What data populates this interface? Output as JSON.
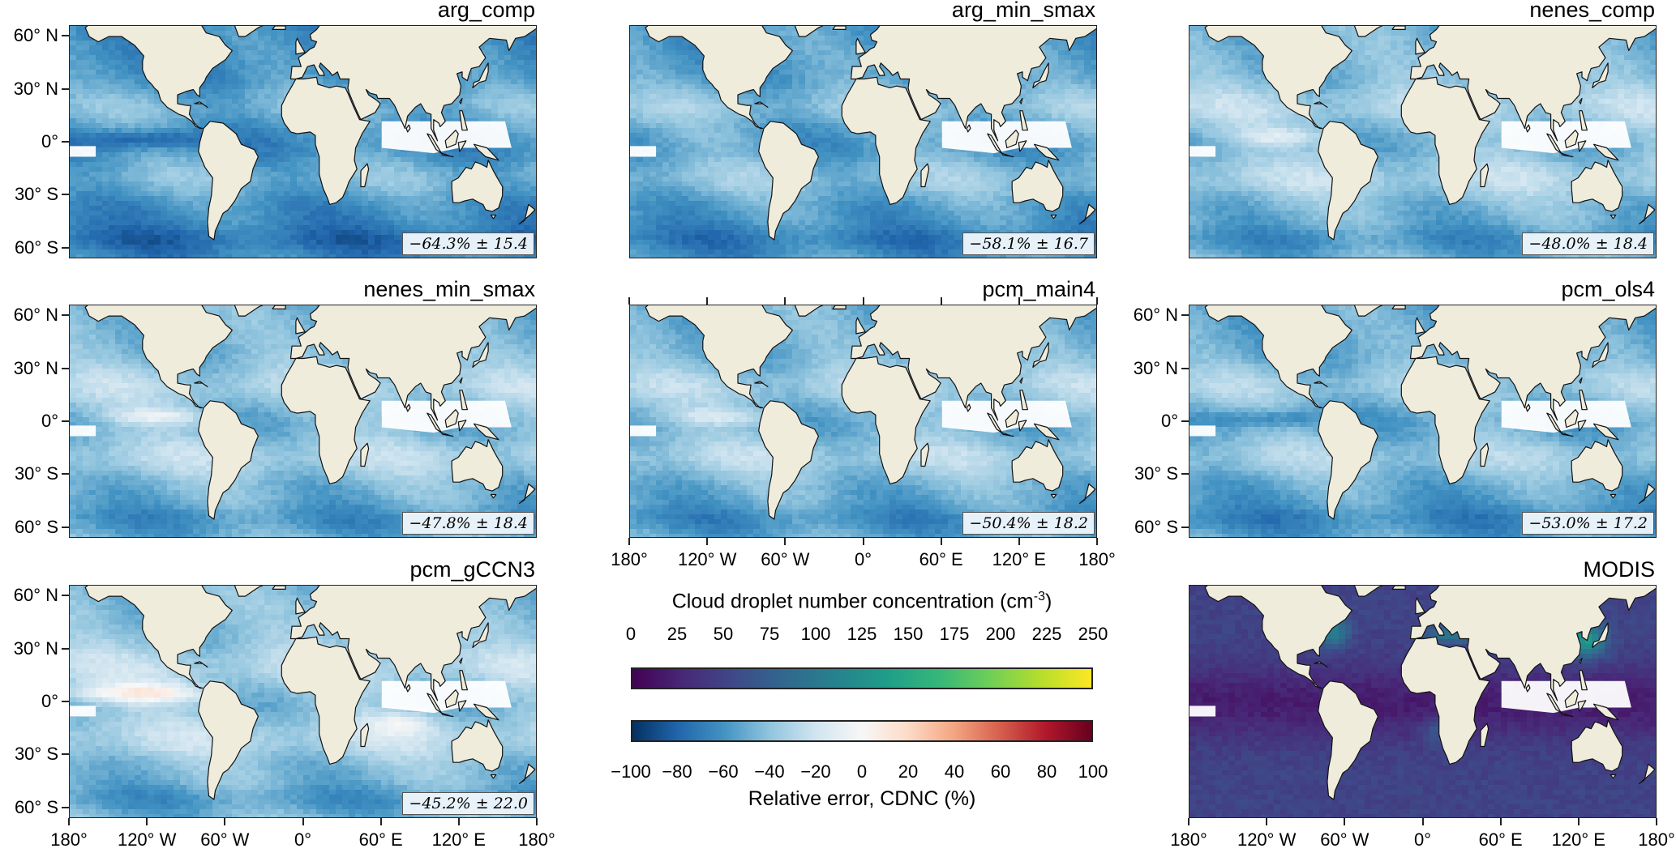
{
  "figure": {
    "lat_ticks": [
      "60° N",
      "30° N",
      "0°",
      "30° S",
      "60° S"
    ],
    "lon_ticks": [
      "180°",
      "120° W",
      "60° W",
      "0°",
      "60° E",
      "120° E",
      "180°"
    ]
  },
  "panels": [
    {
      "id": "arg_comp",
      "title": "arg_comp",
      "stat": "−64.3% ± 15.4",
      "kind": "error",
      "base": -0.64,
      "bias": [
        {
          "lon": -120,
          "lat": 2,
          "w": 45,
          "h": 5,
          "v": -0.25
        }
      ],
      "lat_axis": true,
      "lon_axis": false
    },
    {
      "id": "arg_min_smax",
      "title": "arg_min_smax",
      "stat": "−58.1% ± 16.7",
      "kind": "error",
      "base": -0.58,
      "bias": [
        {
          "lon": -110,
          "lat": 2,
          "w": 45,
          "h": 5,
          "v": 0.05
        }
      ],
      "lat_axis": false,
      "lon_axis": false
    },
    {
      "id": "nenes_comp",
      "title": "nenes_comp",
      "stat": "−48.0% ± 18.4",
      "kind": "error",
      "base": -0.48,
      "bias": [
        {
          "lon": -110,
          "lat": 3,
          "w": 40,
          "h": 5,
          "v": 0.25
        }
      ],
      "lat_axis": false,
      "lon_axis": false
    },
    {
      "id": "nenes_min_smax",
      "title": "nenes_min_smax",
      "stat": "−47.8% ± 18.4",
      "kind": "error",
      "base": -0.48,
      "bias": [
        {
          "lon": -110,
          "lat": 3,
          "w": 40,
          "h": 5,
          "v": 0.3
        }
      ],
      "lat_axis": true,
      "lon_axis": false
    },
    {
      "id": "pcm_main4",
      "title": "pcm_main4",
      "stat": "−50.4% ± 18.2",
      "kind": "error",
      "base": -0.5,
      "bias": [
        {
          "lon": -110,
          "lat": 3,
          "w": 40,
          "h": 5,
          "v": 0.25
        }
      ],
      "lat_axis": false,
      "lon_axis": false
    },
    {
      "id": "pcm_ols4",
      "title": "pcm_ols4",
      "stat": "−53.0% ± 17.2",
      "kind": "error",
      "base": -0.53,
      "bias": [
        {
          "lon": -120,
          "lat": 2,
          "w": 45,
          "h": 5,
          "v": -0.2
        }
      ],
      "lat_axis": true,
      "lon_axis": false
    },
    {
      "id": "pcm_gCCN3",
      "title": "pcm_gCCN3",
      "stat": "−45.2% ± 22.0",
      "kind": "error",
      "base": -0.45,
      "bias": [
        {
          "lon": -125,
          "lat": 5,
          "w": 55,
          "h": 6,
          "v": 0.45
        },
        {
          "lon": 75,
          "lat": -12,
          "w": 25,
          "h": 6,
          "v": 0.25
        }
      ],
      "lat_axis": true,
      "lon_axis": true
    },
    {
      "id": "MODIS",
      "title": "MODIS",
      "stat": "",
      "kind": "cdnc",
      "base": 0.2,
      "bias": [],
      "lat_axis": false,
      "lon_axis": true
    }
  ],
  "colorbars": {
    "cdnc": {
      "label": "Cloud droplet number concentration (cm",
      "label_sup": "-3",
      "label_end": ")",
      "ticks": [
        "0",
        "25",
        "50",
        "75",
        "100",
        "125",
        "150",
        "175",
        "200",
        "225",
        "250"
      ],
      "range": [
        0,
        250
      ],
      "colors": [
        "#440154",
        "#482878",
        "#3e4a89",
        "#31688e",
        "#26828e",
        "#1f9e89",
        "#35b779",
        "#6ece58",
        "#b5de2b",
        "#fde725"
      ]
    },
    "error": {
      "label": "Relative error, CDNC (%)",
      "ticks": [
        "−100",
        "−80",
        "−60",
        "−40",
        "−20",
        "0",
        "20",
        "40",
        "60",
        "80",
        "100"
      ],
      "range": [
        -100,
        100
      ],
      "colors": [
        "#053061",
        "#2166ac",
        "#4393c3",
        "#92c5de",
        "#d1e5f0",
        "#f7f7f7",
        "#fddbc7",
        "#f4a582",
        "#d6604d",
        "#b2182b",
        "#67001f"
      ]
    }
  },
  "colors": {
    "land": "#efecdc",
    "coastline": "#111111",
    "missing": "#ffffff"
  }
}
